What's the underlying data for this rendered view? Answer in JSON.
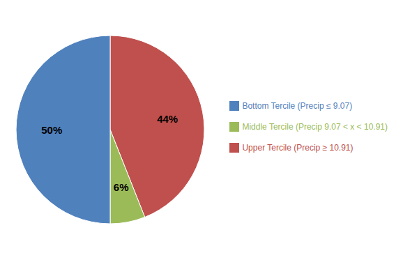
{
  "chart_data": {
    "type": "pie",
    "categories": [
      "Upper Tercile (Precip ≥ 10.91)",
      "Middle Tercile (Precip 9.07 < x < 10.91)",
      "Bottom  Tercile (Precip ≤ 9.07)"
    ],
    "values": [
      44,
      6,
      50
    ],
    "value_labels": [
      "44%",
      "6%",
      "50%"
    ],
    "colors": [
      "#C0504D",
      "#9BBB59",
      "#4F81BD"
    ],
    "data_labels": true,
    "legend": "right"
  }
}
